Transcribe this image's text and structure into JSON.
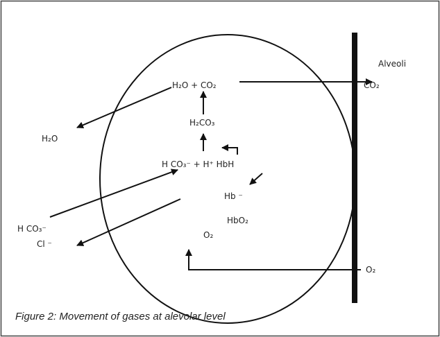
{
  "labels": {
    "alveoli": "Alveoli",
    "co2_out": "CO₂",
    "h2o_co2": "H₂O + CO₂",
    "h2co3": "H₂CO₃",
    "h2o_out": "H₂O",
    "hco3_h": "H CO₃⁻ + H⁺ HbH",
    "hb": "Hb ⁻",
    "hbo2": "HbO₂",
    "hco3_in": "H CO₃⁻",
    "o2_in": "O₂",
    "cl": "Cl ⁻",
    "o2_out": "O₂"
  },
  "caption": "Figure 2: Movement of gases at alevolar level"
}
